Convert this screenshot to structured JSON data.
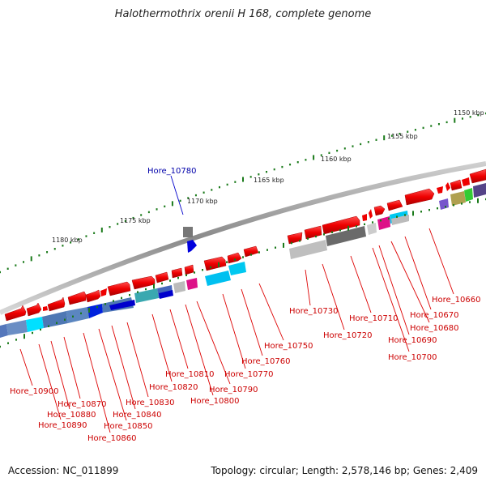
{
  "title": "Halothermothrix orenii H 168, complete genome",
  "accession": "Accession: NC_011899",
  "summary": "Topology: circular; Length: 2,578,146 bp; Genes: 2,409",
  "scale_ticks": [
    "1150 kbp",
    "1155 kbp",
    "1160 kbp",
    "1165 kbp",
    "1170 kbp",
    "1175 kbp",
    "1180 kbp"
  ],
  "highlighted_gene": "Hore_10780",
  "gene_labels": [
    "Hore_10660",
    "Hore_10670",
    "Hore_10680",
    "Hore_10690",
    "Hore_10700",
    "Hore_10710",
    "Hore_10720",
    "Hore_10730",
    "Hore_10750",
    "Hore_10760",
    "Hore_10770",
    "Hore_10790",
    "Hore_10800",
    "Hore_10810",
    "Hore_10820",
    "Hore_10830",
    "Hore_10840",
    "Hore_10850",
    "Hore_10860",
    "Hore_10870",
    "Hore_10880",
    "Hore_10890",
    "Hore_10900"
  ],
  "colors": {
    "gene_red": "#ee0000",
    "highlight_blue": "#0000dd",
    "tick_green": "#1a7a1a",
    "backbone_grey": "#888888",
    "label_red": "#cc0000"
  }
}
